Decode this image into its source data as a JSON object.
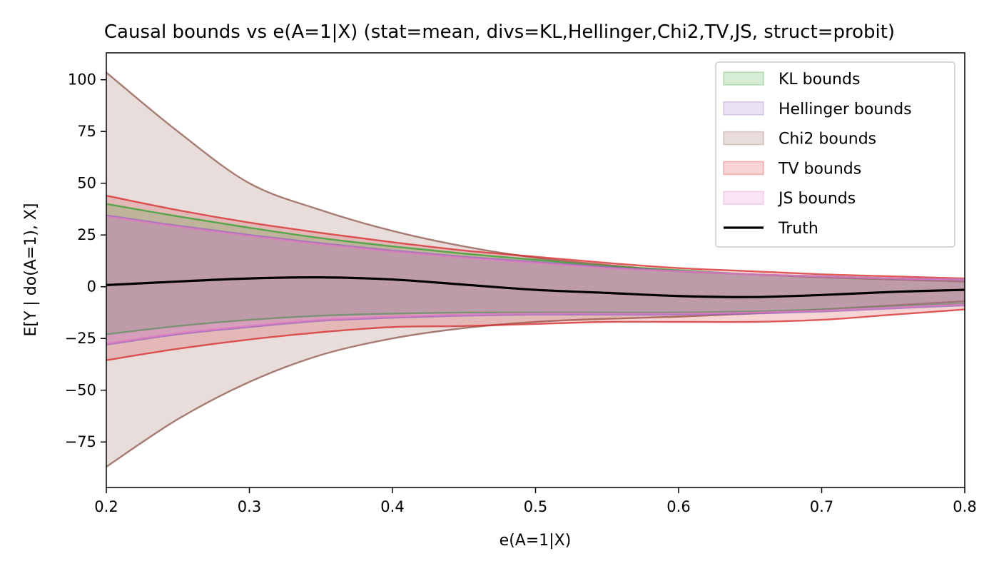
{
  "chart_data": {
    "type": "area",
    "title": "Causal bounds vs e(A=1|X) (stat=mean, divs=KL,Hellinger,Chi2,TV,JS, struct=probit)",
    "xlabel": "e(A=1|X)",
    "ylabel": "E[Y | do(A=1), X]",
    "xlim": [
      0.2,
      0.8
    ],
    "ylim": [
      -97,
      113
    ],
    "xticks": [
      0.2,
      0.3,
      0.4,
      0.5,
      0.6,
      0.7,
      0.8
    ],
    "xtick_labels": [
      "0.2",
      "0.3",
      "0.4",
      "0.5",
      "0.6",
      "0.7",
      "0.8"
    ],
    "yticks": [
      -75,
      -50,
      -25,
      0,
      25,
      50,
      75,
      100
    ],
    "ytick_labels": [
      "−75",
      "−50",
      "−25",
      "0",
      "25",
      "50",
      "75",
      "100"
    ],
    "legend_position": "top-right",
    "x": [
      0.2,
      0.25,
      0.3,
      0.35,
      0.4,
      0.45,
      0.5,
      0.55,
      0.6,
      0.65,
      0.7,
      0.75,
      0.8
    ],
    "series": [
      {
        "name": "Chi2 bounds",
        "fill_color": "#8c564b",
        "line_color": "#8c564b",
        "fill_opacity": 0.2,
        "upper": [
          103.5,
          75,
          50,
          37,
          27,
          19.5,
          14,
          10.5,
          7.5,
          6,
          4.5,
          3.5,
          2.5
        ],
        "lower": [
          -87,
          -64,
          -46,
          -33,
          -25,
          -20,
          -17,
          -15.5,
          -14.5,
          -13,
          -11,
          -9,
          -7
        ]
      },
      {
        "name": "TV bounds",
        "fill_color": "#d62728",
        "line_color": "#d62728",
        "fill_opacity": 0.2,
        "upper": [
          44,
          37,
          31,
          26,
          21.5,
          17.5,
          14.5,
          11.5,
          9,
          7.5,
          6,
          5,
          4
        ],
        "lower": [
          -35.5,
          -30,
          -25.5,
          -22,
          -19.5,
          -19,
          -18,
          -17,
          -17,
          -17,
          -16,
          -13.5,
          -11
        ]
      },
      {
        "name": "KL bounds",
        "fill_color": "#2ca02c",
        "line_color": "#2ca02c",
        "fill_opacity": 0.2,
        "upper": [
          40,
          34,
          28.5,
          23.5,
          19.5,
          16,
          13,
          10,
          8,
          6,
          5,
          4,
          3.5
        ],
        "lower": [
          -23,
          -19,
          -16,
          -14,
          -13,
          -12.5,
          -12.5,
          -12.5,
          -12.5,
          -12,
          -11,
          -9.5,
          -8
        ]
      },
      {
        "name": "Hellinger bounds",
        "fill_color": "#9467bd",
        "line_color": "#9467bd",
        "fill_opacity": 0.2,
        "upper": [
          34.5,
          29.5,
          25,
          21,
          17.5,
          14.5,
          12,
          9.5,
          7.5,
          6,
          5,
          4,
          3.5
        ],
        "lower": [
          -28,
          -23,
          -19.5,
          -16.5,
          -15,
          -14,
          -13.5,
          -13.5,
          -13.5,
          -13,
          -12,
          -10.5,
          -9
        ]
      },
      {
        "name": "JS bounds",
        "fill_color": "#e377c2",
        "line_color": "#e377c2",
        "fill_opacity": 0.2,
        "upper": [
          34,
          29,
          24.5,
          20.5,
          17,
          14,
          11.5,
          9,
          7.5,
          6,
          5,
          4,
          3.5
        ],
        "lower": [
          -27.5,
          -22.5,
          -19,
          -16,
          -14.5,
          -13.5,
          -13,
          -13,
          -13,
          -12.5,
          -11.5,
          -10,
          -8.5
        ]
      }
    ],
    "truth": {
      "name": "Truth",
      "color": "#000000",
      "values": [
        0.8,
        2.5,
        4,
        4.5,
        3.5,
        1,
        -1.5,
        -3,
        -4.5,
        -5,
        -4,
        -2.5,
        -1.5
      ]
    },
    "legend": [
      {
        "label": "KL bounds",
        "color": "#2ca02c",
        "kind": "patch"
      },
      {
        "label": "Hellinger bounds",
        "color": "#9467bd",
        "kind": "patch"
      },
      {
        "label": "Chi2 bounds",
        "color": "#8c564b",
        "kind": "patch"
      },
      {
        "label": "TV bounds",
        "color": "#d62728",
        "kind": "patch"
      },
      {
        "label": "JS bounds",
        "color": "#e377c2",
        "kind": "patch"
      },
      {
        "label": "Truth",
        "color": "#000000",
        "kind": "line"
      }
    ]
  }
}
